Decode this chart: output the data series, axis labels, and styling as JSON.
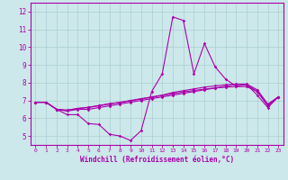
{
  "xlabel": "Windchill (Refroidissement éolien,°C)",
  "background_color": "#cce8ea",
  "grid_color": "#aacfd1",
  "line_color": "#aa00aa",
  "spine_color": "#aa00aa",
  "tick_color": "#aa00aa",
  "xlim": [
    -0.5,
    23.5
  ],
  "ylim": [
    4.5,
    12.5
  ],
  "yticks": [
    5,
    6,
    7,
    8,
    9,
    10,
    11,
    12
  ],
  "xticks": [
    0,
    1,
    2,
    3,
    4,
    5,
    6,
    7,
    8,
    9,
    10,
    11,
    12,
    13,
    14,
    15,
    16,
    17,
    18,
    19,
    20,
    21,
    22,
    23
  ],
  "x": [
    0,
    1,
    2,
    3,
    4,
    5,
    6,
    7,
    8,
    9,
    10,
    11,
    12,
    13,
    14,
    15,
    16,
    17,
    18,
    19,
    20,
    21,
    22,
    23
  ],
  "line1": [
    6.9,
    6.9,
    6.5,
    6.2,
    6.2,
    5.7,
    5.65,
    5.1,
    5.0,
    4.75,
    5.3,
    7.5,
    8.5,
    11.7,
    11.5,
    8.5,
    10.2,
    8.9,
    8.2,
    7.8,
    7.9,
    7.3,
    6.6,
    7.2
  ],
  "line2": [
    6.9,
    6.9,
    6.5,
    6.4,
    6.5,
    6.5,
    6.6,
    6.7,
    6.8,
    6.9,
    7.0,
    7.1,
    7.2,
    7.3,
    7.4,
    7.5,
    7.6,
    7.7,
    7.8,
    7.9,
    7.9,
    7.5,
    6.7,
    7.2
  ],
  "line3": [
    6.9,
    6.9,
    6.5,
    6.45,
    6.55,
    6.6,
    6.7,
    6.8,
    6.9,
    7.0,
    7.1,
    7.2,
    7.3,
    7.45,
    7.55,
    7.65,
    7.75,
    7.82,
    7.88,
    7.92,
    7.92,
    7.6,
    6.8,
    7.2
  ],
  "line4": [
    6.9,
    6.9,
    6.5,
    6.45,
    6.55,
    6.62,
    6.72,
    6.82,
    6.88,
    6.98,
    7.08,
    7.18,
    7.28,
    7.38,
    7.48,
    7.56,
    7.64,
    7.7,
    7.75,
    7.78,
    7.78,
    7.5,
    6.75,
    7.2
  ]
}
